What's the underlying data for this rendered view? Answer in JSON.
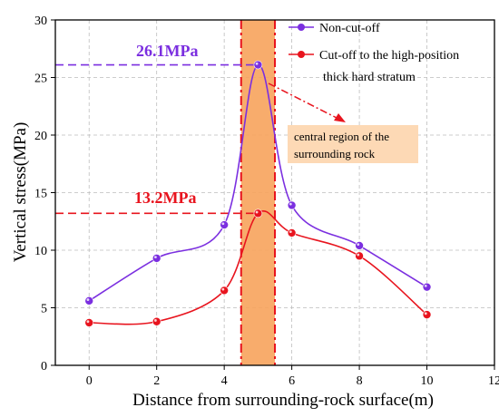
{
  "chart_data": {
    "type": "line",
    "title": "",
    "xlabel": "Distance from surrounding-rock surface(m)",
    "ylabel": "Vertical stress(MPa)",
    "xlim": [
      -1,
      12
    ],
    "ylim": [
      0,
      30
    ],
    "xticks": [
      0,
      2,
      4,
      6,
      8,
      10,
      12
    ],
    "yticks": [
      0,
      5,
      10,
      15,
      20,
      25,
      30
    ],
    "grid": true,
    "legend_position": "top-right",
    "series": [
      {
        "name": "Non-cut-off",
        "color": "#7B2FE0",
        "x": [
          0,
          2,
          4,
          5,
          6,
          8,
          10
        ],
        "y": [
          5.6,
          9.3,
          12.2,
          26.1,
          13.9,
          10.4,
          6.8
        ]
      },
      {
        "name": "Cut-off to the high-position thick hard stratum",
        "legend_lines": [
          "Cut-off to the high-position",
          "thick hard stratum"
        ],
        "color": "#E8141E",
        "x": [
          0,
          2,
          4,
          5,
          6,
          8,
          10
        ],
        "y": [
          3.7,
          3.8,
          6.5,
          13.2,
          11.5,
          9.5,
          4.4
        ]
      }
    ],
    "highlight_band": {
      "x_from": 4.5,
      "x_to": 5.5,
      "color": "#F7A35C"
    },
    "peak_annotations": [
      {
        "text": "26.1MPa",
        "x": 5,
        "y": 26.1,
        "color": "#7B2FE0"
      },
      {
        "text": "13.2MPa",
        "x": 5,
        "y": 13.2,
        "color": "#E8141E"
      }
    ],
    "region_annotation": {
      "lines": [
        "central region of the",
        "surrounding rock"
      ],
      "box_color": "#FDD9B5",
      "arrow_color": "#E8141E"
    }
  }
}
